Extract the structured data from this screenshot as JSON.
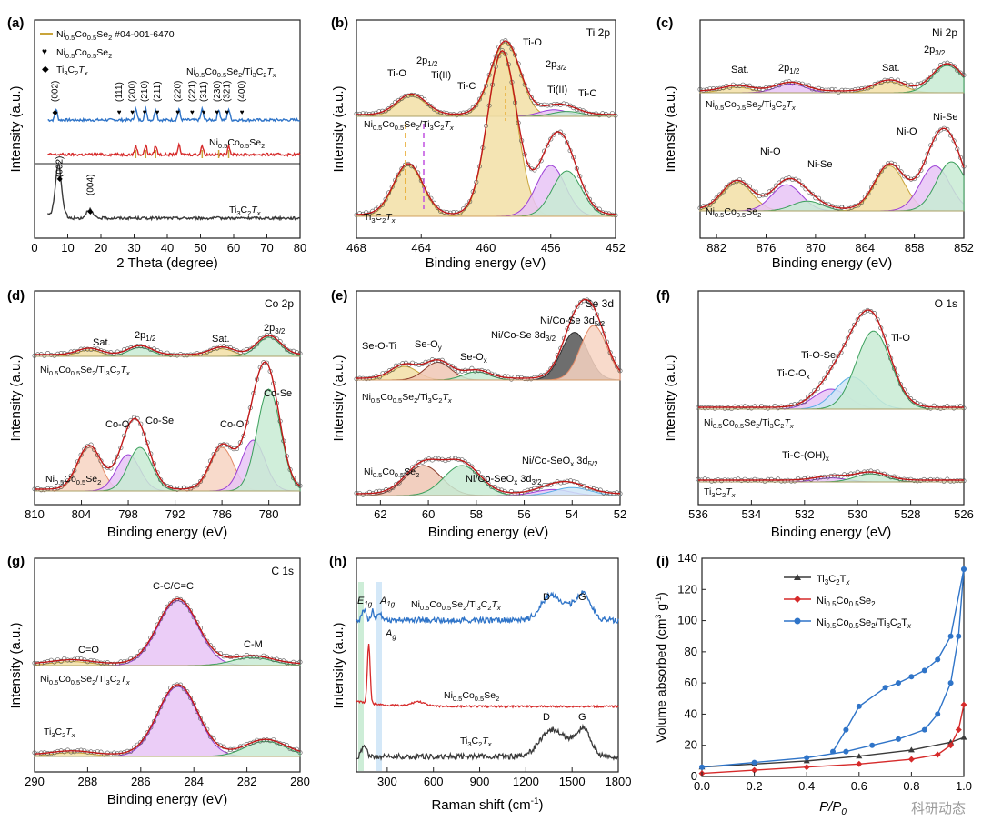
{
  "figure": {
    "watermark": "科研动态",
    "colors": {
      "blue": "#2f74c8",
      "red": "#d62a2a",
      "black": "#3a3a3a",
      "gold": "#c9a43a",
      "gold_light": "#f2dfa6",
      "purple": "#9b3fd6",
      "purple_light": "#e7c4f6",
      "green": "#3a9f5b",
      "green_light": "#c8ebd3",
      "salmon": "#e38a66",
      "salmon_light": "#f7d3c2",
      "skyblue": "#5aaee6",
      "skyblue_light": "#cfe6f7",
      "brown": "#8a3b2a",
      "brown_light": "#f0c7b4"
    }
  },
  "chart_data": [
    {
      "id": "a",
      "type": "line",
      "label": "(a)",
      "xlabel": "2 Theta (degree)",
      "ylabel": "Intensity (a.u.)",
      "xlim": [
        0,
        80
      ],
      "xticks": [
        "0",
        "10",
        "20",
        "30",
        "40",
        "50",
        "60",
        "70",
        "80"
      ],
      "legend": [
        "Ni0.5Co0.5Se2 #04-001-6470",
        "Ni0.5Co0.5Se2",
        "Ti3C2Tx"
      ],
      "legend_text": {
        "ref": "Ni",
        "ref_tail": " #04-001-6470",
        "phase1": "Ni",
        "phase2": "Ti"
      },
      "series": [
        {
          "name": "Ni0.5Co0.5Se2/Ti3C2Tx",
          "label": "Ni0.5Co0.5Se2/Ti3C2Tx",
          "color": "#2f74c8",
          "peaks": [
            6.5,
            30.5,
            33.5,
            36.5,
            43.5,
            50.5,
            55.5,
            58.5
          ],
          "offset": 2
        },
        {
          "name": "Ni0.5Co0.5Se2",
          "label": "Ni0.5Co0.5Se2",
          "color": "#d62a2a",
          "peaks": [
            30.5,
            33.5,
            36.5,
            43.5,
            50.5,
            58.5
          ],
          "offset": 1
        },
        {
          "name": "Ti3C2Tx",
          "label": "Ti3C2Tx",
          "color": "#3a3a3a",
          "peaks": [
            7.2,
            16.5
          ],
          "offset": 0
        }
      ],
      "reference_lines": [
        30.5,
        33.5,
        36.5,
        50.5,
        55.5,
        58.5
      ],
      "annotations": [
        "(002)",
        "(111)",
        "(200)",
        "(210)",
        "(211)",
        "(220)",
        "(221)",
        "(311)",
        "(230)",
        "(321)",
        "(400)",
        "(002)",
        "(004)"
      ],
      "annotation_x": [
        6.2,
        25.5,
        29.5,
        33.2,
        37.0,
        43.2,
        47.5,
        51.0,
        55.0,
        58.0,
        62.5,
        7.6,
        16.8
      ]
    },
    {
      "id": "b",
      "type": "area",
      "label": "(b)",
      "element": "Ti 2p",
      "xlabel": "Binding energy (eV)",
      "ylabel": "Intensity (a.u.)",
      "xlim": [
        468,
        452
      ],
      "xticks": [
        "468",
        "464",
        "460",
        "456",
        "452"
      ],
      "series": [
        {
          "name": "Ni0.5Co0.5Se2/Ti3C2Tx",
          "components": [
            {
              "name": "Ti-O",
              "center": 458.8,
              "height": 0.9,
              "color": "gold"
            },
            {
              "name": "Ti-O",
              "center": 464.6,
              "height": 0.25,
              "color": "gold"
            },
            {
              "name": "Ti(II)",
              "center": 455.8,
              "height": 0.08,
              "color": "purple"
            },
            {
              "name": "Ti-C",
              "center": 455.0,
              "height": 0.06,
              "color": "green"
            }
          ]
        },
        {
          "name": "Ti3C2Tx",
          "components": [
            {
              "name": "Ti-O",
              "center": 459.0,
              "height": 0.9,
              "color": "gold"
            },
            {
              "name": "Ti(II)",
              "center": 456.0,
              "height": 0.28,
              "color": "purple"
            },
            {
              "name": "Ti-C",
              "center": 455.0,
              "height": 0.25,
              "color": "green"
            },
            {
              "name": "Ti-O",
              "center": 464.8,
              "height": 0.28,
              "color": "gold"
            }
          ]
        }
      ],
      "annotations": [
        "Ti-O",
        "2p1/2",
        "Ti(II)",
        "Ti-C",
        "Ti-O",
        "2p3/2",
        "Ti(II)",
        "Ti-C"
      ],
      "annotation_text": {
        "p12_base": "2p",
        "p12_sub": "1/2",
        "p32_base": "2p",
        "p32_sub": "3/2"
      },
      "sample_labels": [
        "Ni0.5Co0.5Se2/Ti3C2Tx",
        "Ti3C2Tx"
      ]
    },
    {
      "id": "c",
      "type": "area",
      "label": "(c)",
      "element": "Ni 2p",
      "xlabel": "Binding energy (eV)",
      "ylabel": "Intensity (a.u.)",
      "xlim": [
        884,
        852
      ],
      "xticks": [
        "882",
        "876",
        "870",
        "864",
        "858",
        "852"
      ],
      "series": [
        {
          "name": "Ni0.5Co0.5Se2/Ti3C2Tx",
          "components": [
            {
              "name": "Sat.",
              "center": 879.5,
              "height": 0.05,
              "color": "gold"
            },
            {
              "name": "2p1/2",
              "center": 873.0,
              "height": 0.08,
              "color": "purple"
            },
            {
              "name": "Sat.",
              "center": 861.0,
              "height": 0.1,
              "color": "gold"
            },
            {
              "name": "2p3/2",
              "center": 854.0,
              "height": 0.25,
              "color": "green"
            }
          ]
        },
        {
          "name": "Ni0.5Co0.5Se2",
          "components": [
            {
              "name": "Sat.",
              "center": 879.5,
              "height": 0.35,
              "color": "gold"
            },
            {
              "name": "Ni-O",
              "center": 873.5,
              "height": 0.32,
              "color": "purple"
            },
            {
              "name": "Ni-Se",
              "center": 871.0,
              "height": 0.12,
              "color": "green"
            },
            {
              "name": "Sat.",
              "center": 861.0,
              "height": 0.55,
              "color": "gold"
            },
            {
              "name": "Ni-O",
              "center": 855.5,
              "height": 0.55,
              "color": "purple"
            },
            {
              "name": "Ni-Se",
              "center": 853.5,
              "height": 0.6,
              "color": "green"
            }
          ]
        }
      ],
      "annotations": [
        "Sat.",
        "2p1/2",
        "Sat.",
        "2p3/2",
        "Ni-O",
        "Ni-Se",
        "Ni-O",
        "Ni-Se"
      ],
      "annotation_text": {
        "p12_base": "2p",
        "p12_sub": "1/2",
        "p32_base": "2p",
        "p32_sub": "3/2"
      },
      "sample_labels": [
        "Ni0.5Co0.5Se2/Ti3C2Tx",
        "Ni0.5Co0.5Se2"
      ]
    },
    {
      "id": "d",
      "type": "area",
      "label": "(d)",
      "element": "Co 2p",
      "xlabel": "Binding energy (eV)",
      "ylabel": "Intensity (a.u.)",
      "xlim": [
        810,
        776
      ],
      "xticks": [
        "810",
        "804",
        "798",
        "792",
        "786",
        "780"
      ],
      "series": [
        {
          "name": "Ni0.5Co0.5Se2/Ti3C2Tx",
          "components": [
            {
              "name": "Sat.",
              "center": 803.0,
              "height": 0.05,
              "color": "gold"
            },
            {
              "name": "2p1/2",
              "center": 796.5,
              "height": 0.07,
              "color": "green"
            },
            {
              "name": "Sat.",
              "center": 786.0,
              "height": 0.06,
              "color": "gold"
            },
            {
              "name": "2p3/2",
              "center": 780.0,
              "height": 0.15,
              "color": "green"
            }
          ]
        },
        {
          "name": "Ni0.5Co0.5Se2",
          "components": [
            {
              "name": "Sat.",
              "center": 803.0,
              "height": 0.3,
              "color": "salmon"
            },
            {
              "name": "Co-O",
              "center": 798.0,
              "height": 0.25,
              "color": "purple"
            },
            {
              "name": "Co-Se",
              "center": 796.5,
              "height": 0.3,
              "color": "green"
            },
            {
              "name": "Sat.",
              "center": 786.0,
              "height": 0.3,
              "color": "salmon"
            },
            {
              "name": "Co-O",
              "center": 782.0,
              "height": 0.35,
              "color": "purple"
            },
            {
              "name": "Co-Se",
              "center": 780.0,
              "height": 0.7,
              "color": "green"
            }
          ]
        }
      ],
      "annotations": [
        "Sat.",
        "2p1/2",
        "Sat.",
        "2p3/2",
        "Co-O",
        "Co-Se",
        "Co-O",
        "Co-Se"
      ],
      "annotation_text": {
        "p12_base": "2p",
        "p12_sub": "1/2",
        "p32_base": "2p",
        "p32_sub": "3/2"
      },
      "sample_labels": [
        "Ni0.5Co0.5Se2/Ti3C2Tx",
        "Ni0.5Co0.5Se2"
      ]
    },
    {
      "id": "e",
      "type": "area",
      "label": "(e)",
      "element": "Se 3d",
      "xlabel": "Binding energy (eV)",
      "ylabel": "Intensity (a.u.)",
      "xlim": [
        63,
        52
      ],
      "xticks": [
        "62",
        "60",
        "58",
        "56",
        "54",
        "52"
      ],
      "series": [
        {
          "name": "Ni0.5Co0.5Se2/Ti3C2Tx",
          "components": [
            {
              "name": "Se-O-Ti",
              "center": 61.0,
              "height": 0.1,
              "color": "gold"
            },
            {
              "name": "Se-Oy",
              "center": 59.6,
              "height": 0.13,
              "color": "brown"
            },
            {
              "name": "Se-Ox",
              "center": 58.0,
              "height": 0.06,
              "color": "green"
            },
            {
              "name": "Ni/Co-Se 3d3/2",
              "center": 53.9,
              "height": 0.35,
              "color": "black"
            },
            {
              "name": "Ni/Co-Se 3d5/2",
              "center": 53.1,
              "height": 0.4,
              "color": "salmon"
            }
          ]
        },
        {
          "name": "Ni0.5Co0.5Se2",
          "components": [
            {
              "name": "Se-Oy",
              "center": 60.2,
              "height": 0.3,
              "color": "brown"
            },
            {
              "name": "Se-Ox",
              "center": 58.6,
              "height": 0.3,
              "color": "green"
            },
            {
              "name": "Ni/Co-SeOx 3d3/2",
              "center": 54.8,
              "height": 0.06,
              "color": "purple"
            },
            {
              "name": "Ni/Co-SeOx 3d5/2",
              "center": 54.0,
              "height": 0.08,
              "color": "skyblue"
            }
          ]
        }
      ],
      "annotations": [
        "Se-O-Ti",
        "Se-Oy",
        "Se-Ox",
        "Ni/Co-Se 3d3/2",
        "Ni/Co-Se 3d5/2",
        "Ni/Co-SeOx 3d3/2",
        "Ni/Co-SeOx 3d5/2"
      ],
      "annotation_text": {
        "se_o_ti": "Se-O-Ti",
        "se_oy_base": "Se-O",
        "se_oy_sub": "y",
        "se_ox_base": "Se-O",
        "se_ox_sub": "x",
        "nico_se": "Ni/Co-Se 3d",
        "nico_se_32": "3/2",
        "nico_se_52": "5/2",
        "nico_seox_base": "Ni/Co-SeO",
        "nico_seox_x": "x",
        "nico_seox_3d": " 3d"
      },
      "sample_labels": [
        "Ni0.5Co0.5Se2/Ti3C2Tx",
        "Ni0.5Co0.5Se2"
      ]
    },
    {
      "id": "f",
      "type": "area",
      "label": "(f)",
      "element": "O 1s",
      "xlabel": "Binding energy (eV)",
      "ylabel": "Intensity (a.u.)",
      "xlim": [
        536,
        526
      ],
      "xticks": [
        "536",
        "534",
        "532",
        "530",
        "528",
        "526"
      ],
      "series": [
        {
          "name": "Ni0.5Co0.5Se2/Ti3C2Tx",
          "components": [
            {
              "name": "Ti-C-Ox",
              "center": 531.0,
              "height": 0.2,
              "color": "purple"
            },
            {
              "name": "Ti-O-Se",
              "center": 530.2,
              "height": 0.32,
              "color": "skyblue"
            },
            {
              "name": "Ti-O",
              "center": 529.4,
              "height": 0.78,
              "color": "green"
            }
          ]
        },
        {
          "name": "Ti3C2Tx",
          "components": [
            {
              "name": "Ti-C-(OH)x",
              "center": 531.0,
              "height": 0.04,
              "color": "purple"
            },
            {
              "name": "Ti-O",
              "center": 529.5,
              "height": 0.08,
              "color": "green"
            }
          ]
        }
      ],
      "annotations": [
        "Ti-O",
        "Ti-O-Se",
        "Ti-C-Ox",
        "Ti-C-(OH)x"
      ],
      "annotation_text": {
        "tico_base": "Ti-C-O",
        "tico_sub": "x",
        "tioh_base": "Ti-C-(OH)",
        "tioh_sub": "x"
      },
      "sample_labels": [
        "Ni0.5Co0.5Se2/Ti3C2Tx",
        "Ti3C2Tx"
      ]
    },
    {
      "id": "g",
      "type": "area",
      "label": "(g)",
      "element": "C 1s",
      "xlabel": "Binding energy (eV)",
      "ylabel": "Intensity (a.u.)",
      "xlim": [
        290,
        280
      ],
      "xticks": [
        "290",
        "288",
        "286",
        "284",
        "282",
        "280"
      ],
      "series": [
        {
          "name": "Ni0.5Co0.5Se2/Ti3C2Tx",
          "components": [
            {
              "name": "C=O",
              "center": 288.6,
              "height": 0.04,
              "color": "gold"
            },
            {
              "name": "C-C/C=C",
              "center": 284.6,
              "height": 0.65,
              "color": "purple"
            },
            {
              "name": "C-M",
              "center": 281.8,
              "height": 0.08,
              "color": "green"
            }
          ]
        },
        {
          "name": "Ti3C2Tx",
          "components": [
            {
              "name": "C=O",
              "center": 288.6,
              "height": 0.03,
              "color": "gold"
            },
            {
              "name": "C-C/C=C",
              "center": 284.6,
              "height": 0.55,
              "color": "purple"
            },
            {
              "name": "C-M",
              "center": 281.3,
              "height": 0.12,
              "color": "green"
            }
          ]
        }
      ],
      "annotations": [
        "C=O",
        "C-C/C=C",
        "C-M"
      ],
      "sample_labels": [
        "Ni0.5Co0.5Se2/Ti3C2Tx",
        "Ti3C2Tx"
      ]
    },
    {
      "id": "h",
      "type": "line",
      "label": "(h)",
      "xlabel": "Raman shift (cm-1)",
      "ylabel": "Intensity (a.u.)",
      "xlim": [
        100,
        1800
      ],
      "xticks": [
        "300",
        "600",
        "900",
        "1200",
        "1500",
        "1800"
      ],
      "series": [
        {
          "name": "Ni0.5Co0.5Se2/Ti3C2Tx",
          "color": "#2f74c8",
          "peaks": [
            150,
            205,
            250,
            1350,
            1580
          ]
        },
        {
          "name": "Ni0.5Co0.5Se2",
          "color": "#d62a2a",
          "peaks": [
            180,
            500
          ]
        },
        {
          "name": "Ti3C2Tx",
          "color": "#3a3a3a",
          "peaks": [
            150,
            1350,
            1580
          ]
        }
      ],
      "annotations": [
        "E1g",
        "A1g",
        "Ag",
        "D",
        "G",
        "D",
        "G"
      ],
      "annotation_text": {
        "e_base": "E",
        "e_sub": "1g",
        "a1_base": "A",
        "a1_sub": "1g",
        "ag_base": "A",
        "ag_sub": "g"
      },
      "sample_labels": [
        "Ni0.5Co0.5Se2/Ti3C2Tx",
        "Ni0.5Co0.5Se2",
        "Ti3C2Tx"
      ]
    },
    {
      "id": "i",
      "type": "line",
      "label": "(i)",
      "xlabel": "P/P0",
      "ylabel": "Volume absorbed (cm3 g-1)",
      "xlim": [
        0.0,
        1.0
      ],
      "ylim": [
        0,
        140
      ],
      "xticks": [
        "0.0",
        "0.2",
        "0.4",
        "0.6",
        "0.8",
        "1.0"
      ],
      "yticks": [
        "0",
        "20",
        "40",
        "60",
        "80",
        "100",
        "120",
        "140"
      ],
      "legend": [
        "Ti3C2Tx",
        "Ni0.5Co0.5Se2",
        "Ni0.5Co0.5Se2/Ti3C2Tx"
      ],
      "legend_text": {
        "ti": "Ti",
        "ni": "Ni"
      },
      "series": [
        {
          "name": "Ti3C2Tx",
          "color": "#3a3a3a",
          "x": [
            0.0,
            0.2,
            0.4,
            0.6,
            0.8,
            0.95,
            1.0
          ],
          "y": [
            6,
            8,
            10,
            13,
            17,
            22,
            25
          ]
        },
        {
          "name": "Ni0.5Co0.5Se2",
          "color": "#d62a2a",
          "x": [
            0.0,
            0.2,
            0.4,
            0.6,
            0.8,
            0.9,
            0.95,
            0.98,
            1.0
          ],
          "y": [
            2,
            4,
            6,
            8,
            11,
            14,
            20,
            30,
            46
          ]
        },
        {
          "name": "Ni0.5Co0.5Se2/Ti3C2Tx",
          "color": "#2f74c8",
          "x": [
            0.0,
            0.2,
            0.4,
            0.55,
            0.65,
            0.75,
            0.85,
            0.9,
            0.95,
            0.98,
            1.0
          ],
          "y": [
            6,
            9,
            12,
            16,
            20,
            24,
            30,
            40,
            60,
            90,
            133
          ]
        },
        {
          "name": "Ni0.5Co0.5Se2/Ti3C2Tx desorption",
          "color": "#2f74c8",
          "x": [
            1.0,
            0.95,
            0.9,
            0.85,
            0.8,
            0.75,
            0.7,
            0.6,
            0.55,
            0.5
          ],
          "y": [
            133,
            90,
            75,
            68,
            64,
            60,
            57,
            45,
            30,
            16
          ]
        }
      ]
    }
  ]
}
